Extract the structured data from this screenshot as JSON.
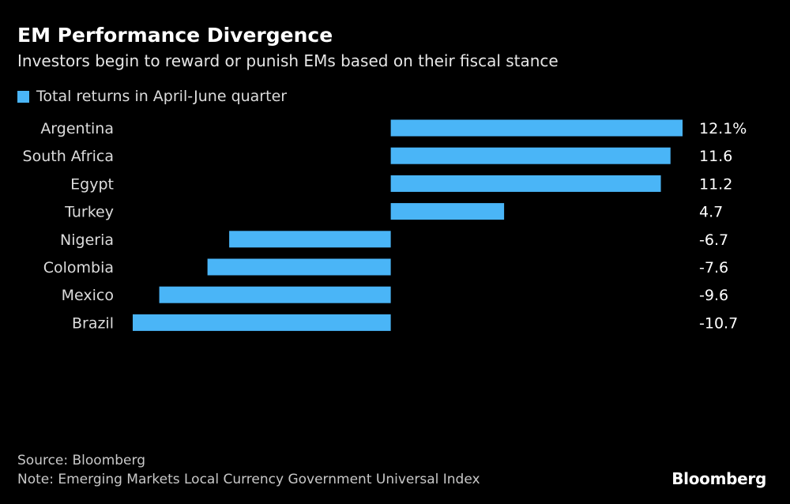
{
  "colors": {
    "background": "#000000",
    "bar": "#4ab5f7",
    "text": "#ffffff",
    "muted": "#c8c8c8"
  },
  "header": {
    "title": "EM Performance Divergence",
    "subtitle": "Investors begin to reward or punish EMs based on their fiscal stance"
  },
  "legend": {
    "label": "Total returns in April-June quarter"
  },
  "footer": {
    "source": "Source: Bloomberg",
    "note": "Note: Emerging Markets Local Currency Government Universal Index",
    "brand": "Bloomberg"
  },
  "chart_data": {
    "type": "bar",
    "orientation": "horizontal",
    "title": "EM Performance Divergence",
    "subtitle": "Investors begin to reward or punish EMs based on their fiscal stance",
    "categories": [
      "Argentina",
      "South Africa",
      "Egypt",
      "Turkey",
      "Nigeria",
      "Colombia",
      "Mexico",
      "Brazil"
    ],
    "values": [
      12.1,
      11.6,
      11.2,
      4.7,
      -6.7,
      -7.6,
      -9.6,
      -10.7
    ],
    "value_labels": [
      "12.1%",
      "11.6",
      "11.2",
      "4.7",
      "-6.7",
      "-7.6",
      "-9.6",
      "-10.7"
    ],
    "series_name": "Total returns in April-June quarter",
    "unit": "%",
    "xlim": [
      -10.7,
      12.1
    ],
    "grid": false,
    "legend_position": "top-left"
  }
}
